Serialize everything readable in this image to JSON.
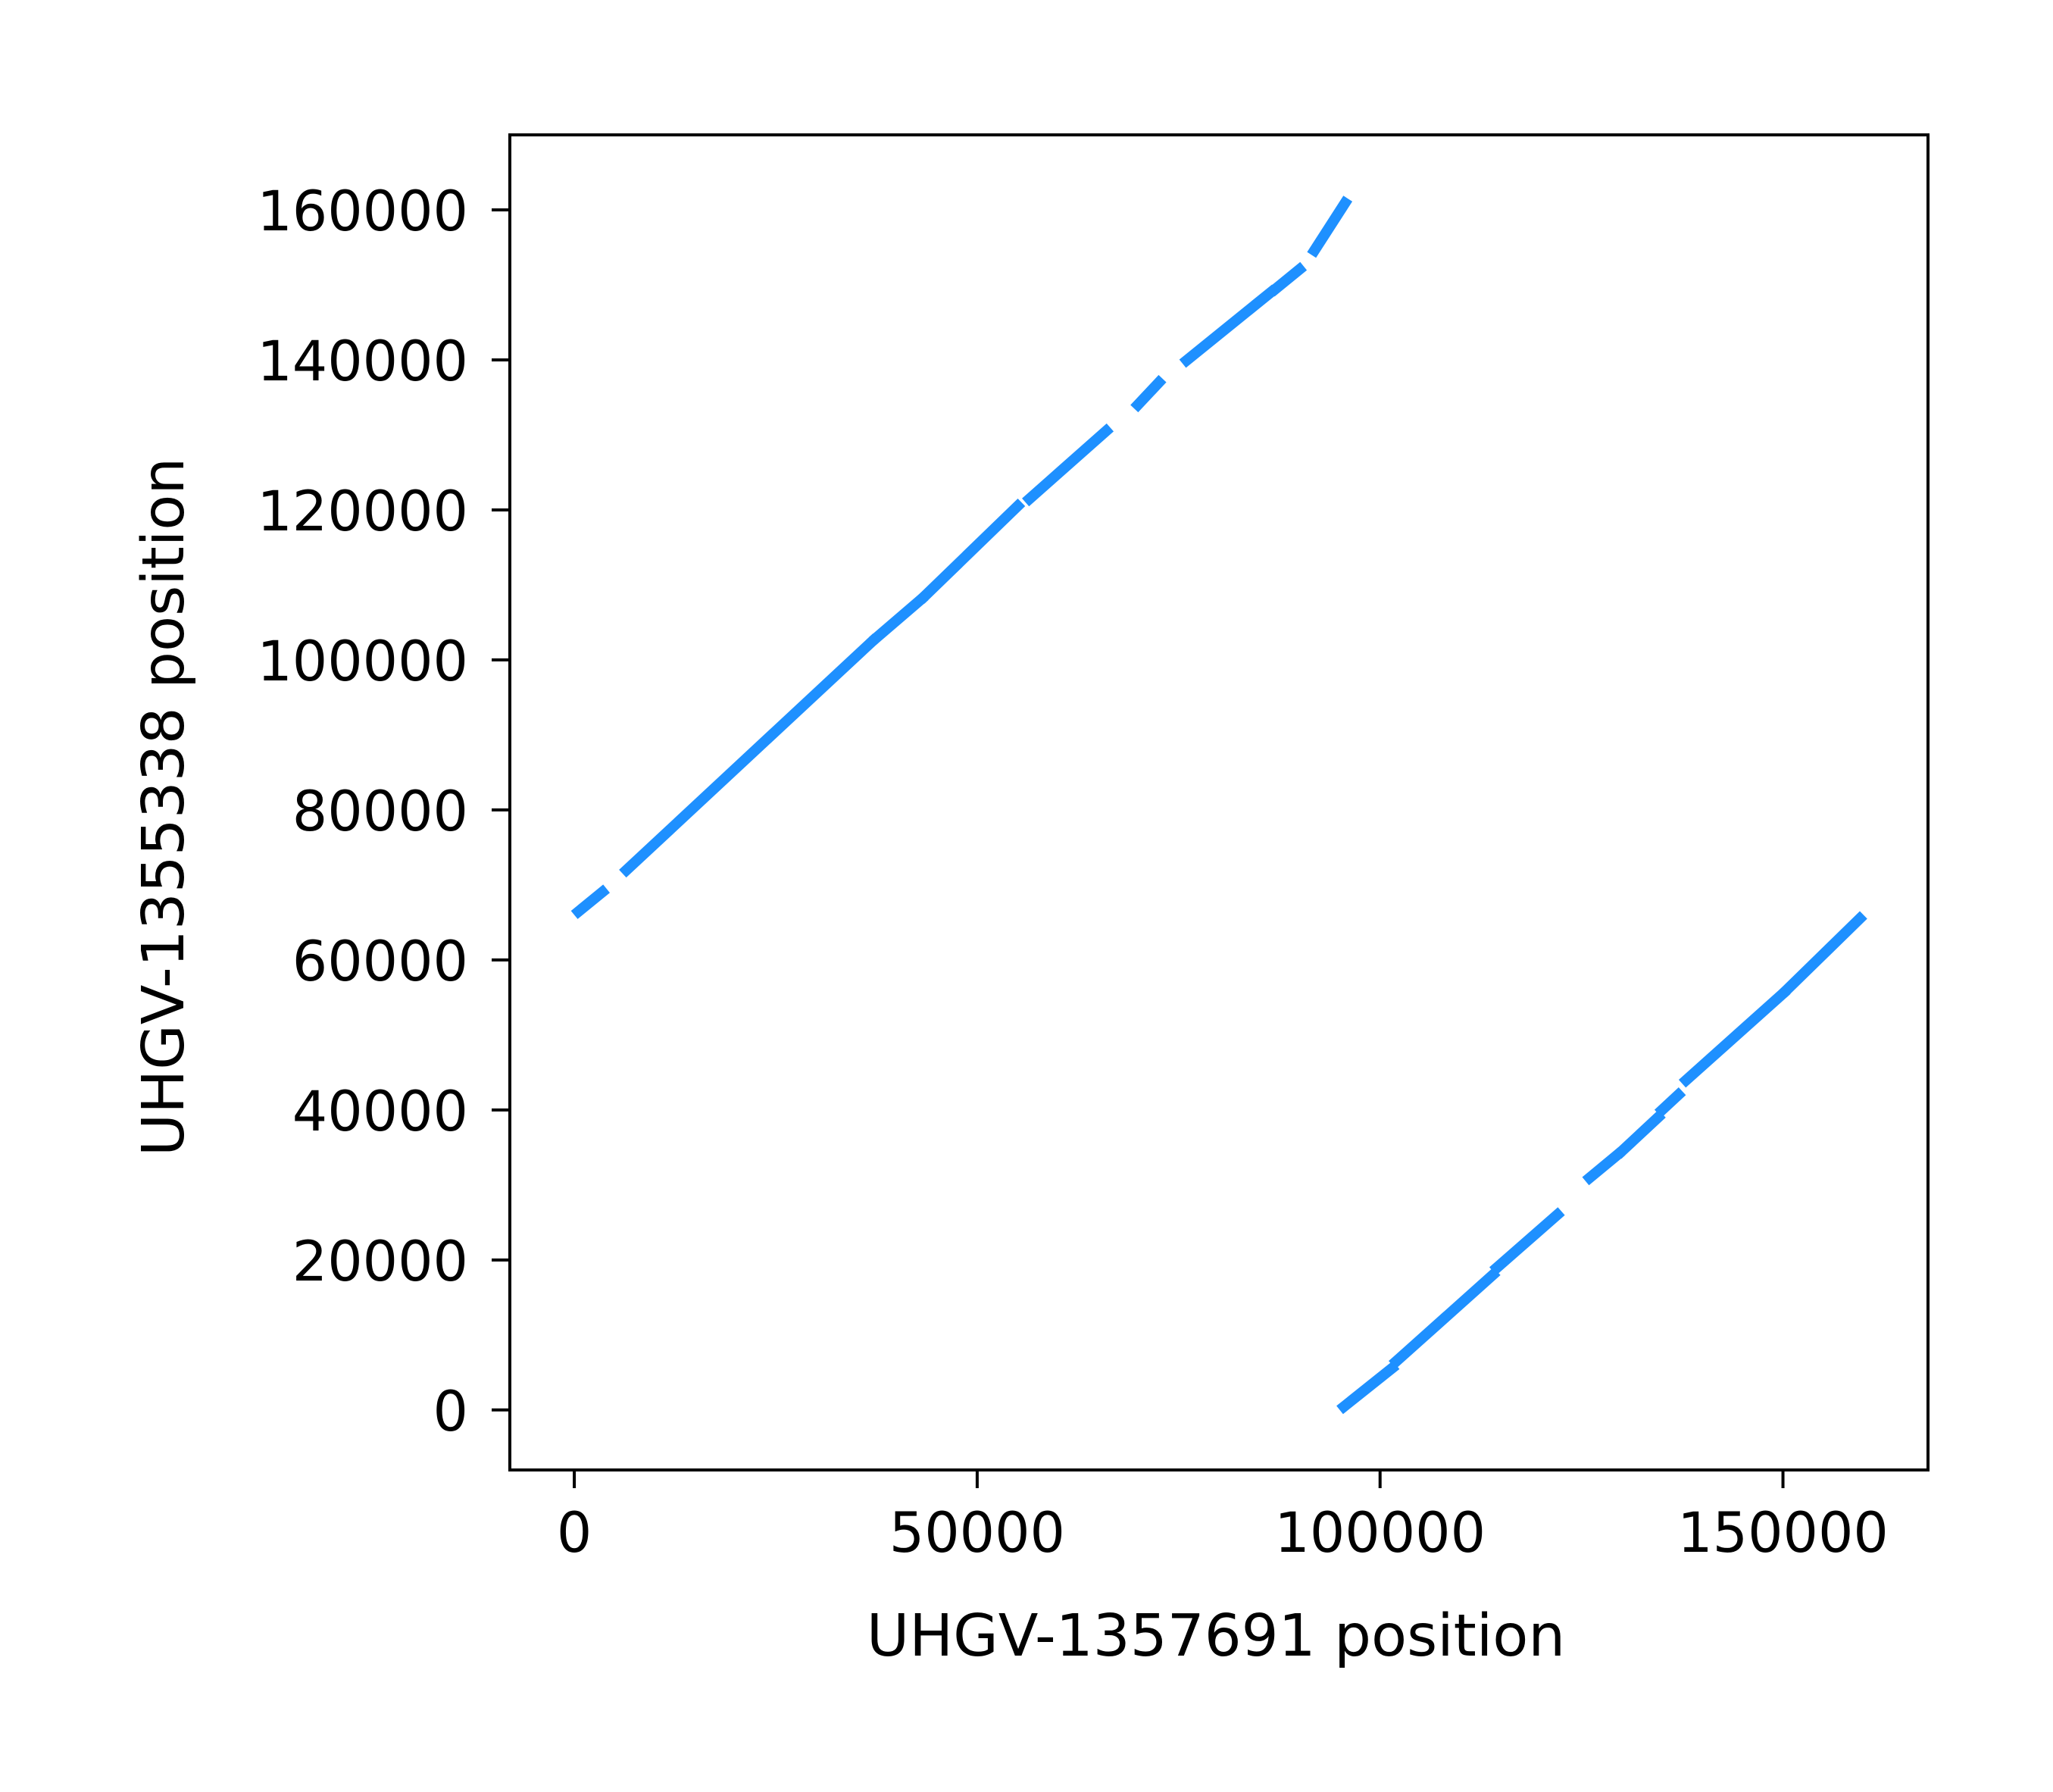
{
  "chart_data": {
    "type": "line",
    "title": "",
    "xlabel": "UHGV-1357691 position",
    "ylabel": "UHGV-1355338 position",
    "xlim": [
      -8000,
      168000
    ],
    "ylim": [
      -8000,
      170000
    ],
    "xticks": [
      0,
      50000,
      100000,
      150000
    ],
    "xtick_labels": [
      "0",
      "50000",
      "100000",
      "150000"
    ],
    "yticks": [
      0,
      20000,
      40000,
      60000,
      80000,
      100000,
      120000,
      140000,
      160000
    ],
    "ytick_labels": [
      "0",
      "20000",
      "40000",
      "60000",
      "80000",
      "100000",
      "120000",
      "140000",
      "160000"
    ],
    "grid": false,
    "legend": "none",
    "color": "#1e90ff",
    "series": [
      {
        "segments": [
          {
            "x": [
              0,
              4000
            ],
            "y": [
              66000,
              69500
            ]
          },
          {
            "x": [
              6000,
              37500
            ],
            "y": [
              71500,
              103000
            ]
          },
          {
            "x": [
              37000,
              43500
            ],
            "y": [
              102500,
              108500
            ]
          },
          {
            "x": [
              43000,
              55500
            ],
            "y": [
              108000,
              121000
            ]
          },
          {
            "x": [
              56000,
              66500
            ],
            "y": [
              121000,
              131000
            ]
          },
          {
            "x": [
              69500,
              73000
            ],
            "y": [
              133500,
              137500
            ]
          },
          {
            "x": [
              75500,
              87000
            ],
            "y": [
              139500,
              149500
            ]
          },
          {
            "x": [
              86500,
              90500
            ],
            "y": [
              149000,
              152500
            ]
          },
          {
            "x": [
              91500,
              96000
            ],
            "y": [
              154000,
              161500
            ]
          }
        ]
      },
      {
        "segments": [
          {
            "x": [
              95000,
              102000
            ],
            "y": [
              0,
              6000
            ]
          },
          {
            "x": [
              101500,
              114500
            ],
            "y": [
              6000,
              18500
            ]
          },
          {
            "x": [
              114000,
              122500
            ],
            "y": [
              18500,
              26500
            ]
          },
          {
            "x": [
              125500,
              130000
            ],
            "y": [
              30500,
              34500
            ]
          },
          {
            "x": [
              129500,
              135000
            ],
            "y": [
              34000,
              39500
            ]
          },
          {
            "x": [
              134500,
              137500
            ],
            "y": [
              39500,
              42500
            ]
          },
          {
            "x": [
              137500,
              150500
            ],
            "y": [
              43500,
              56000
            ]
          },
          {
            "x": [
              150000,
              160000
            ],
            "y": [
              55500,
              66000
            ]
          }
        ]
      }
    ]
  }
}
